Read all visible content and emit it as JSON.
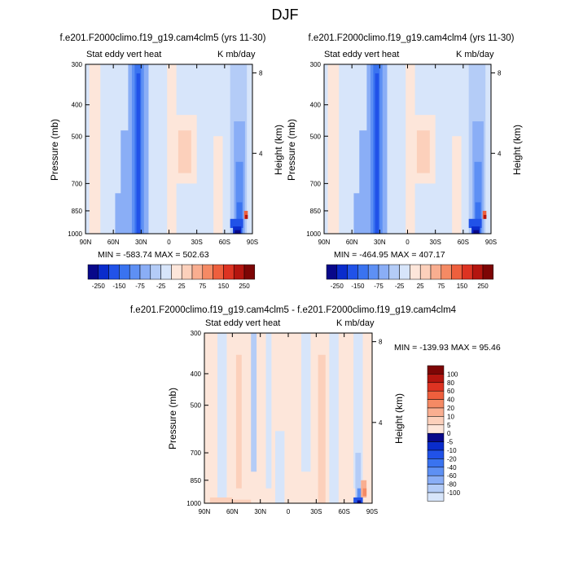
{
  "title": "DJF",
  "chart_data": [
    {
      "id": "p1",
      "type": "heatmap",
      "title": "f.e201.F2000climo.f19_g19.cam4clm5 (yrs 11-30)",
      "left_label": "Stat eddy vert heat",
      "right_label": "K mb/day",
      "ylabel": "Pressure (mb)",
      "y2label": "Height (km)",
      "x_ticks": [
        "90N",
        "60N",
        "30N",
        "0",
        "30S",
        "60S",
        "90S"
      ],
      "y_ticks": [
        "300",
        "400",
        "500",
        "700",
        "850",
        "1000"
      ],
      "y2_ticks": [
        "8",
        "4"
      ],
      "min_max": "MIN = -583.74   MAX = 502.63",
      "colorbar": [
        "-250",
        "-150",
        "-75",
        "-25",
        "25",
        "75",
        "150",
        "250"
      ]
    },
    {
      "id": "p2",
      "type": "heatmap",
      "title": "f.e201.F2000climo.f19_g19.cam4clm4 (yrs 11-30)",
      "left_label": "Stat eddy vert heat",
      "right_label": "K mb/day",
      "ylabel": "Pressure (mb)",
      "y2label": "Height (km)",
      "x_ticks": [
        "90N",
        "60N",
        "30N",
        "0",
        "30S",
        "60S",
        "90S"
      ],
      "y_ticks": [
        "300",
        "400",
        "500",
        "700",
        "850",
        "1000"
      ],
      "y2_ticks": [
        "8",
        "4"
      ],
      "min_max": "MIN = -464.95   MAX = 407.17",
      "colorbar": [
        "-250",
        "-150",
        "-75",
        "-25",
        "25",
        "75",
        "150",
        "250"
      ]
    },
    {
      "id": "p3",
      "type": "heatmap",
      "title": "f.e201.F2000climo.f19_g19.cam4clm5 - f.e201.F2000climo.f19_g19.cam4clm4",
      "left_label": "Stat eddy vert heat",
      "right_label": "K mb/day",
      "ylabel": "Pressure (mb)",
      "y2label": "Height (km)",
      "x_ticks": [
        "90N",
        "60N",
        "30N",
        "0",
        "30S",
        "60S",
        "90S"
      ],
      "y_ticks": [
        "300",
        "400",
        "500",
        "700",
        "850",
        "1000"
      ],
      "y2_ticks": [
        "8",
        "4"
      ],
      "min_max": "MIN = -139.93   MAX =  95.46",
      "colorbar": [
        "100",
        "80",
        "60",
        "40",
        "20",
        "10",
        "5",
        "0",
        "-5",
        "-10",
        "-20",
        "-40",
        "-60",
        "-80",
        "-100"
      ]
    }
  ],
  "colors": {
    "blue": [
      "#08088a",
      "#0a2ccc",
      "#2152e8",
      "#3a73f0",
      "#5e90f4",
      "#8aaef6",
      "#b4ccf7",
      "#d7e5fa"
    ],
    "red": [
      "#fde6da",
      "#fcd0bb",
      "#f9ae90",
      "#f58a64",
      "#ee5f3d",
      "#dd3322",
      "#b4150f",
      "#7d0505"
    ]
  }
}
